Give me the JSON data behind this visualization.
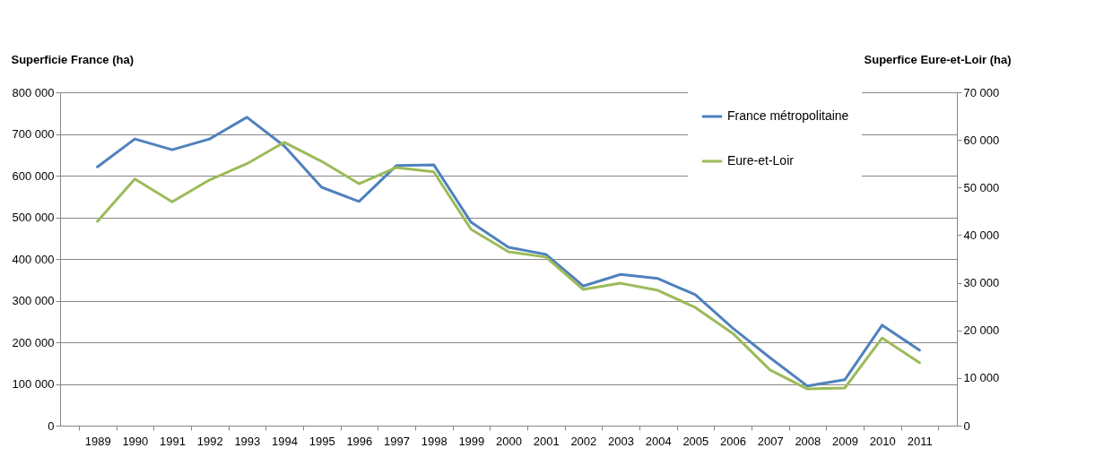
{
  "chart_data": {
    "type": "line",
    "ylabel": "Superficie France (ha)",
    "y2label": "Superfice Eure-et-Loir (ha)",
    "categories": [
      "1989",
      "1990",
      "1991",
      "1992",
      "1993",
      "1994",
      "1995",
      "1996",
      "1997",
      "1998",
      "1999",
      "2000",
      "2001",
      "2002",
      "2003",
      "2004",
      "2005",
      "2006",
      "2007",
      "2008",
      "2009",
      "2010",
      "2011"
    ],
    "series": [
      {
        "name": "France métropolitaine",
        "color": "#4f81bd",
        "values": [
          621000,
          688000,
          662000,
          688000,
          740000,
          671000,
          572000,
          538000,
          624000,
          626000,
          488000,
          428000,
          411000,
          335000,
          363000,
          353000,
          314000,
          234000,
          163000,
          95000,
          110000,
          241000,
          181000
        ]
      },
      {
        "name": "Eure-et-Loir",
        "color": "#9bbb59",
        "axis": "y2",
        "values": [
          42900,
          51800,
          47000,
          51600,
          55000,
          59500,
          55500,
          50800,
          54200,
          53300,
          41200,
          36500,
          35400,
          28600,
          29900,
          28400,
          24800,
          19400,
          11700,
          7700,
          7900,
          18400,
          13200
        ]
      }
    ],
    "ylim": [
      0,
      800000
    ],
    "yticks": [
      0,
      {
        "value": 100000,
        "label": "100 000"
      },
      {
        "value": 200000,
        "label": "200 000"
      },
      {
        "value": 300000,
        "label": "300 000"
      },
      {
        "value": 400000,
        "label": "400 000"
      },
      {
        "value": 500000,
        "label": "500 000"
      },
      {
        "value": 600000,
        "label": "600 000"
      },
      {
        "value": 700000,
        "label": "700 000"
      },
      {
        "value": 800000,
        "label": "800 000"
      }
    ],
    "y2lim": [
      0,
      70000
    ],
    "y2ticks": [
      0,
      {
        "value": 10000,
        "label": "10 000"
      },
      {
        "value": 20000,
        "label": "20 000"
      },
      {
        "value": 30000,
        "label": "30 000"
      },
      {
        "value": 40000,
        "label": "40 000"
      },
      {
        "value": 50000,
        "label": "50 000"
      },
      {
        "value": 60000,
        "label": "60 000"
      },
      {
        "value": 70000,
        "label": "70 000"
      }
    ],
    "grid": "y",
    "legend": "top right",
    "marker": "none",
    "line_style": "solid"
  }
}
